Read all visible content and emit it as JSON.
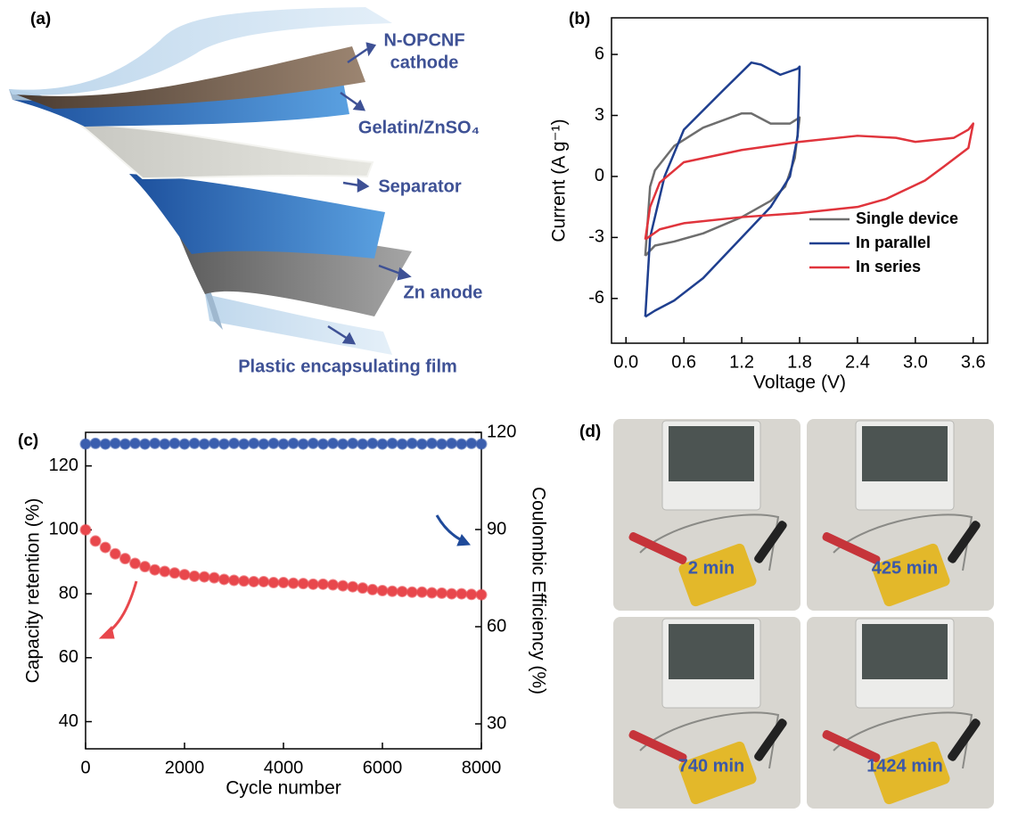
{
  "diagram": {
    "label": "(a)",
    "labels": {
      "cathode": [
        "N-OPCNF",
        "cathode"
      ],
      "electrolyte": "Gelatin/ZnSO₄",
      "separator": "Separator",
      "anode": "Zn anode",
      "film": "Plastic encapsulating film"
    }
  },
  "photos": {
    "label": "(d)",
    "frames": [
      "2 min",
      "425 min",
      "740 min",
      "1424 min"
    ]
  },
  "chart_data": [
    {
      "type": "line",
      "panel_label": "(b)",
      "xlabel": "Voltage (V)",
      "ylabel": "Current (A g⁻¹)",
      "xlim": [
        -0.15,
        3.75
      ],
      "ylim": [
        -8.2,
        7.8
      ],
      "xticks": [
        {
          "value": 0,
          "label": "0.0"
        },
        0.6,
        1.2,
        1.8,
        2.4,
        {
          "value": 3,
          "label": "3.0"
        },
        3.6
      ],
      "yticks": [
        -6,
        -3,
        0,
        3,
        6
      ],
      "legend": "lower right",
      "series": [
        {
          "name": "Single device",
          "color": "#6e6e6e",
          "x": [
            0.2,
            0.25,
            0.3,
            0.5,
            0.8,
            1.2,
            1.3,
            1.5,
            1.7,
            1.8,
            1.75,
            1.65,
            1.5,
            1.2,
            0.8,
            0.5,
            0.3,
            0.2
          ],
          "values": [
            -3.9,
            -0.5,
            0.3,
            1.5,
            2.4,
            3.1,
            3.1,
            2.6,
            2.6,
            2.9,
            0.9,
            -0.5,
            -1.2,
            -2.0,
            -2.8,
            -3.2,
            -3.4,
            -3.9
          ]
        },
        {
          "name": "In parallel",
          "color": "#1f3f8f",
          "x": [
            0.2,
            0.25,
            0.4,
            0.6,
            1.0,
            1.3,
            1.4,
            1.6,
            1.78,
            1.8,
            1.78,
            1.7,
            1.5,
            1.2,
            0.8,
            0.5,
            0.3,
            0.2
          ],
          "values": [
            -6.9,
            -3,
            0,
            2.3,
            4.2,
            5.6,
            5.5,
            5.0,
            5.3,
            5.4,
            2,
            0,
            -1.5,
            -3,
            -5.0,
            -6.1,
            -6.6,
            -6.9
          ]
        },
        {
          "name": "In series",
          "color": "#e0343c",
          "x": [
            0.2,
            0.25,
            0.35,
            0.6,
            1.2,
            1.8,
            2.4,
            2.8,
            3.0,
            3.4,
            3.55,
            3.6,
            3.55,
            3.3,
            3.1,
            2.7,
            2.4,
            1.8,
            1.2,
            0.6,
            0.35,
            0.2
          ],
          "values": [
            -3.1,
            -1.5,
            -0.3,
            0.7,
            1.3,
            1.7,
            2.0,
            1.9,
            1.7,
            1.9,
            2.3,
            2.6,
            1.4,
            0.5,
            -0.2,
            -1.1,
            -1.5,
            -1.8,
            -2.0,
            -2.3,
            -2.6,
            -3.1
          ]
        }
      ]
    },
    {
      "type": "scatter",
      "panel_label": "(c)",
      "xlabel": "Cycle number",
      "ylabel": "Capacity retention (%)",
      "y2label": "Coulombic Efficiency (%)",
      "xlim": [
        0,
        8000
      ],
      "ylim": [
        31.5,
        130.5
      ],
      "y2lim": [
        22.3,
        120
      ],
      "xticks": [
        0,
        2000,
        4000,
        6000,
        8000
      ],
      "yticks": [
        40,
        60,
        80,
        100,
        120
      ],
      "y2ticks": [
        30,
        60,
        90,
        120
      ],
      "x": [
        0,
        200,
        400,
        600,
        800,
        1000,
        1200,
        1400,
        1600,
        1800,
        2000,
        2200,
        2400,
        2600,
        2800,
        3000,
        3200,
        3400,
        3600,
        3800,
        4000,
        4200,
        4400,
        4600,
        4800,
        5000,
        5200,
        5400,
        5600,
        5800,
        6000,
        6200,
        6400,
        6600,
        6800,
        7000,
        7200,
        7400,
        7600,
        7800,
        8000
      ],
      "series": [
        {
          "color": "#e8474c",
          "values": [
            100,
            96.5,
            94.5,
            92.5,
            91,
            89.5,
            88.5,
            87.5,
            87,
            86.5,
            86,
            85.5,
            85.3,
            85,
            84.5,
            84.2,
            84,
            83.8,
            83.8,
            83.5,
            83.5,
            83.3,
            83.2,
            83,
            83,
            82.8,
            82.5,
            82.2,
            81.8,
            81.3,
            81,
            80.8,
            80.7,
            80.5,
            80.5,
            80.3,
            80.2,
            80,
            80,
            79.8,
            79.7
          ]
        },
        {
          "color": "#3a5eae",
          "axis": "y2",
          "values": [
            116.4,
            116.6,
            116.4,
            116.6,
            116.4,
            116.6,
            116.4,
            116.6,
            116.4,
            116.6,
            116.4,
            116.6,
            116.4,
            116.6,
            116.4,
            116.6,
            116.4,
            116.6,
            116.4,
            116.6,
            116.4,
            116.6,
            116.4,
            116.6,
            116.4,
            116.6,
            116.4,
            116.6,
            116.4,
            116.6,
            116.4,
            116.6,
            116.4,
            116.6,
            116.4,
            116.6,
            116.4,
            116.6,
            116.4,
            116.6,
            116.4
          ]
        }
      ]
    }
  ]
}
